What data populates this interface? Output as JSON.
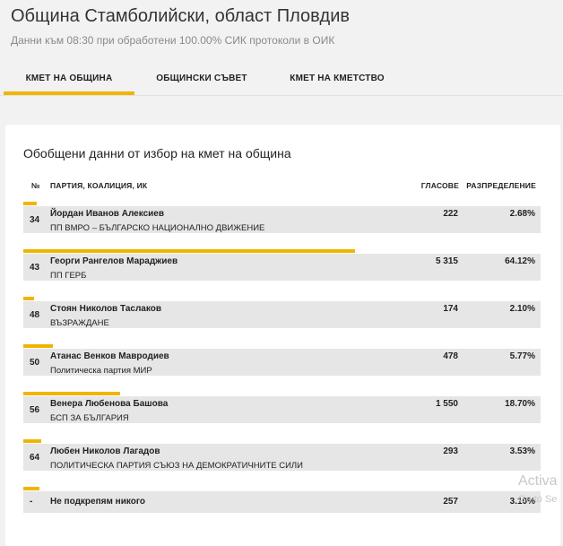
{
  "header": {
    "title": "Община Стамболийски, област Пловдив",
    "subtitle": "Данни към 08:30 при обработени 100.00% СИК протоколи в ОИК"
  },
  "tabs": [
    {
      "label": "КМЕТ НА ОБЩИНА",
      "active": true
    },
    {
      "label": "ОБЩИНСКИ СЪВЕТ",
      "active": false
    },
    {
      "label": "КМЕТ НА КМЕТСТВО",
      "active": false
    }
  ],
  "card": {
    "title": "Обобщени данни от избор на кмет на община",
    "columns": {
      "num": "№",
      "party": "ПАРТИЯ, КОАЛИЦИЯ, ИК",
      "votes": "ГЛАСОВЕ",
      "distribution": "РАЗПРЕДЕЛЕНИЕ"
    },
    "rows": [
      {
        "num": "34",
        "name": "Йордан Иванов Алексиев",
        "party": "ПП ВМРО – БЪЛГАРСКО НАЦИОНАЛНО ДВИЖЕНИЕ",
        "votes": "222",
        "pct": "2.68%",
        "share": 2.68
      },
      {
        "num": "43",
        "name": "Георги Рангелов Мараджиев",
        "party": "ПП ГЕРБ",
        "votes": "5 315",
        "pct": "64.12%",
        "share": 64.12
      },
      {
        "num": "48",
        "name": "Стоян Николов Таслаков",
        "party": "ВЪЗРАЖДАНЕ",
        "votes": "174",
        "pct": "2.10%",
        "share": 2.1
      },
      {
        "num": "50",
        "name": "Атанас Венков Мавродиев",
        "party": "Политическа партия МИР",
        "votes": "478",
        "pct": "5.77%",
        "share": 5.77
      },
      {
        "num": "56",
        "name": "Венера Любенова Башова",
        "party": "БСП ЗА БЪЛГАРИЯ",
        "votes": "1 550",
        "pct": "18.70%",
        "share": 18.7
      },
      {
        "num": "64",
        "name": "Любен Николов Лагадов",
        "party": "ПОЛИТИЧЕСКА ПАРТИЯ СЪЮЗ НА ДЕМОКРАТИЧНИТЕ СИЛИ",
        "votes": "293",
        "pct": "3.53%",
        "share": 3.53
      },
      {
        "num": "-",
        "name": "Не подкрепям никого",
        "party": "",
        "votes": "257",
        "pct": "3.10%",
        "share": 3.1
      }
    ]
  },
  "watermark": {
    "line1": "Activa",
    "line2": "Go to Se"
  },
  "colors": {
    "accent": "#f0b500",
    "row_bg": "#e6e6e6"
  }
}
